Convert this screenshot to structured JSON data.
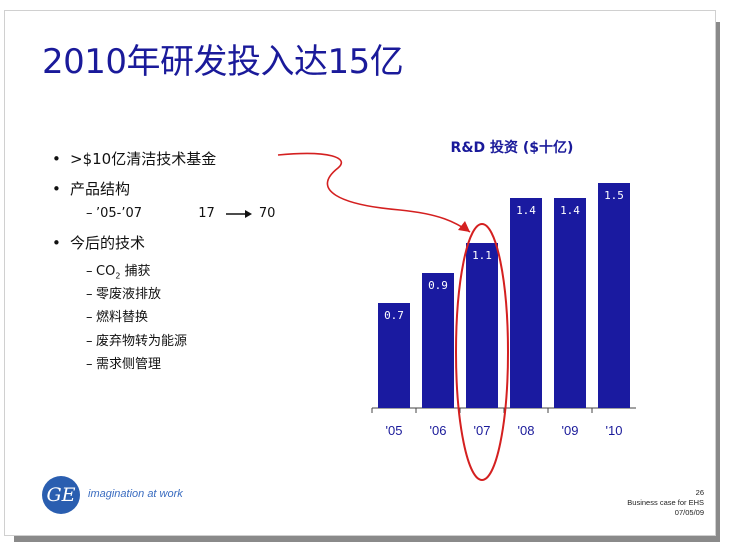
{
  "slide": {
    "title": "2010年研发投入达15亿",
    "bullets": [
      {
        "text": ">$10亿清洁技术基金"
      },
      {
        "text": "产品结构"
      },
      {
        "text": "今后的技术"
      }
    ],
    "product_structure": {
      "period": "’05-’07",
      "from": "17",
      "to": "70"
    },
    "tech_items": [
      "CO2 捕获",
      "零废液排放",
      "燃料替换",
      "废弃物转为能源",
      "需求侧管理"
    ],
    "co2_prefix": "CO",
    "co2_sub": "2",
    "co2_rest": " 捕获",
    "tagline": "imagination at work",
    "logo_text": "GE",
    "footer": {
      "page": "26",
      "line1": "Business case for EHS",
      "line2": "07/05/09"
    }
  },
  "chart_data": {
    "type": "bar",
    "title": "R&D 投资 ($十亿)",
    "categories": [
      "'05",
      "'06",
      "'07",
      "'08",
      "'09",
      "'10"
    ],
    "values": [
      0.7,
      0.9,
      1.1,
      1.4,
      1.4,
      1.5
    ],
    "value_labels": [
      "0.7",
      "0.9",
      "1.1",
      "1.4",
      "1.4",
      "1.5"
    ],
    "ylim": [
      0,
      1.6
    ],
    "bar_color": "#1a1aa0",
    "highlight_category": "'07",
    "highlight_color": "#d42020",
    "grid": false
  },
  "colors": {
    "title": "#1a1a9a",
    "accent": "#d42020"
  }
}
